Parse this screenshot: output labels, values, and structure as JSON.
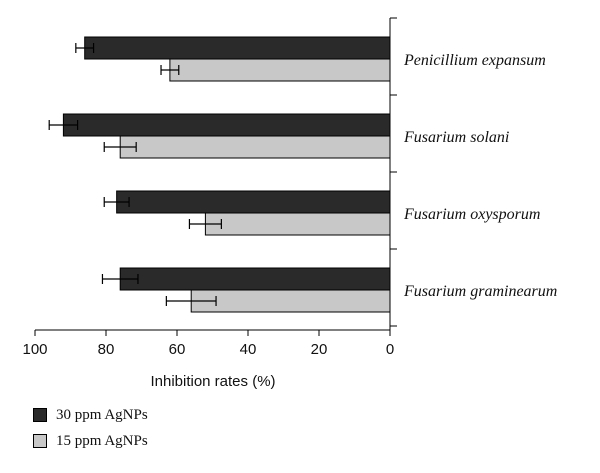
{
  "chart_data": {
    "type": "bar",
    "orientation": "horizontal",
    "x_axis_reversed": true,
    "categories": [
      "Penicillium expansum",
      "Fusarium solani",
      "Fusarium oxysporum",
      "Fusarium graminearum"
    ],
    "series": [
      {
        "name": "30 ppm AgNPs",
        "color": "#2a2a2a",
        "values": [
          86,
          92,
          77,
          76
        ],
        "errors": [
          2.5,
          4,
          3.5,
          5
        ]
      },
      {
        "name": "15 ppm AgNPs",
        "color": "#c8c8c8",
        "values": [
          62,
          76,
          52,
          56
        ],
        "errors": [
          2.5,
          4.5,
          4.5,
          7
        ]
      }
    ],
    "xlabel": "Inhibition rates (%)",
    "xlim": [
      0,
      100
    ],
    "x_ticks": [
      "100",
      "80",
      "60",
      "40",
      "20",
      "0"
    ],
    "legend_position": "bottom-left",
    "grid": false
  }
}
